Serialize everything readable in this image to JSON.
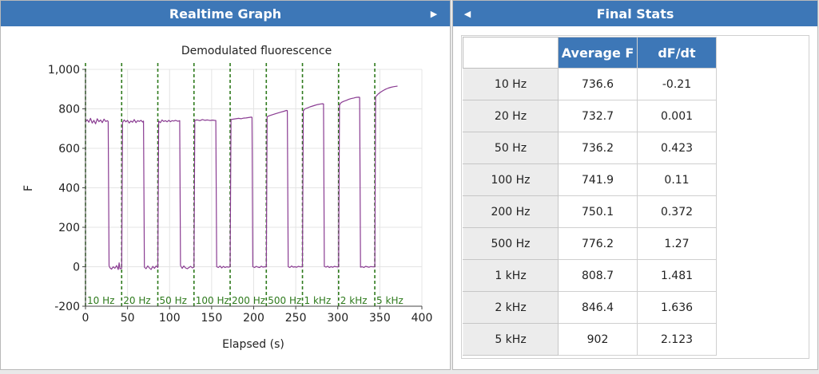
{
  "left_panel": {
    "title": "Realtime Graph",
    "collapse_arrow": "▶"
  },
  "right_panel": {
    "title": "Final Stats",
    "collapse_arrow": "◀"
  },
  "stats": {
    "columns": [
      "Average F",
      "dF/dt"
    ],
    "rows": [
      {
        "label": "10 Hz",
        "avg": "736.6",
        "dfdt": "-0.21"
      },
      {
        "label": "20 Hz",
        "avg": "732.7",
        "dfdt": "0.001"
      },
      {
        "label": "50 Hz",
        "avg": "736.2",
        "dfdt": "0.423"
      },
      {
        "label": "100 Hz",
        "avg": "741.9",
        "dfdt": "0.11"
      },
      {
        "label": "200 Hz",
        "avg": "750.1",
        "dfdt": "0.372"
      },
      {
        "label": "500 Hz",
        "avg": "776.2",
        "dfdt": "1.27"
      },
      {
        "label": "1 kHz",
        "avg": "808.7",
        "dfdt": "1.481"
      },
      {
        "label": "2 kHz",
        "avg": "846.4",
        "dfdt": "1.636"
      },
      {
        "label": "5 kHz",
        "avg": "902",
        "dfdt": "2.123"
      }
    ]
  },
  "chart_data": {
    "type": "line",
    "title": "Demodulated fluorescence",
    "xlabel": "Elapsed (s)",
    "ylabel": "F",
    "xlim": [
      0,
      400
    ],
    "ylim": [
      -200,
      1000
    ],
    "x_ticks": [
      "0",
      "50",
      "100",
      "150",
      "200",
      "250",
      "300",
      "350",
      "400"
    ],
    "x_tick_values": [
      0,
      50,
      100,
      150,
      200,
      250,
      300,
      350,
      400
    ],
    "y_ticks": [
      "-200",
      "0",
      "200",
      "400",
      "600",
      "800",
      "1,000"
    ],
    "y_tick_values": [
      -200,
      0,
      200,
      400,
      600,
      800,
      1000
    ],
    "grid": true,
    "line_color": "#8a3c92",
    "marker_color": "#2e7a1c",
    "markers": [
      {
        "x": 0,
        "label": "10 Hz"
      },
      {
        "x": 43,
        "label": "20 Hz"
      },
      {
        "x": 86,
        "label": "50 Hz"
      },
      {
        "x": 129,
        "label": "100 Hz"
      },
      {
        "x": 172,
        "label": "200 Hz"
      },
      {
        "x": 215,
        "label": "500 Hz"
      },
      {
        "x": 258,
        "label": "1 kHz"
      },
      {
        "x": 301,
        "label": "2 kHz"
      },
      {
        "x": 344,
        "label": "5 kHz"
      }
    ],
    "series": [
      {
        "values": [
          [
            0,
            734
          ],
          [
            2,
            745
          ],
          [
            4,
            732
          ],
          [
            6,
            752
          ],
          [
            8,
            728
          ],
          [
            10,
            742
          ],
          [
            12,
            724
          ],
          [
            14,
            750
          ],
          [
            16,
            735
          ],
          [
            18,
            744
          ],
          [
            20,
            730
          ],
          [
            22,
            748
          ],
          [
            24,
            736
          ],
          [
            26,
            740
          ],
          [
            27,
            736
          ],
          [
            28,
            5
          ],
          [
            29,
            -5
          ],
          [
            31,
            -12
          ],
          [
            33,
            0
          ],
          [
            35,
            -8
          ],
          [
            37,
            6
          ],
          [
            39,
            -14
          ],
          [
            40,
            20
          ],
          [
            41,
            -10
          ],
          [
            43,
            -8
          ],
          [
            44,
            730
          ],
          [
            46,
            744
          ],
          [
            48,
            734
          ],
          [
            50,
            742
          ],
          [
            52,
            728
          ],
          [
            54,
            738
          ],
          [
            56,
            732
          ],
          [
            58,
            746
          ],
          [
            60,
            730
          ],
          [
            62,
            740
          ],
          [
            64,
            736
          ],
          [
            66,
            742
          ],
          [
            68,
            733
          ],
          [
            69,
            738
          ],
          [
            70,
            -2
          ],
          [
            72,
            -10
          ],
          [
            74,
            4
          ],
          [
            76,
            -6
          ],
          [
            78,
            -14
          ],
          [
            80,
            2
          ],
          [
            82,
            -8
          ],
          [
            84,
            4
          ],
          [
            86,
            -4
          ],
          [
            87,
            738
          ],
          [
            89,
            730
          ],
          [
            91,
            744
          ],
          [
            93,
            736
          ],
          [
            95,
            740
          ],
          [
            97,
            734
          ],
          [
            99,
            742
          ],
          [
            101,
            735
          ],
          [
            103,
            740
          ],
          [
            105,
            738
          ],
          [
            107,
            742
          ],
          [
            110,
            737
          ],
          [
            112,
            740
          ],
          [
            113,
            6
          ],
          [
            115,
            -8
          ],
          [
            117,
            4
          ],
          [
            119,
            -6
          ],
          [
            121,
            -10
          ],
          [
            123,
            -4
          ],
          [
            125,
            2
          ],
          [
            127,
            -6
          ],
          [
            129,
            -2
          ],
          [
            130,
            742
          ],
          [
            133,
            744
          ],
          [
            136,
            740
          ],
          [
            139,
            746
          ],
          [
            142,
            742
          ],
          [
            145,
            744
          ],
          [
            148,
            741
          ],
          [
            151,
            743
          ],
          [
            153,
            742
          ],
          [
            155,
            741
          ],
          [
            156,
            0
          ],
          [
            158,
            -4
          ],
          [
            160,
            4
          ],
          [
            162,
            -6
          ],
          [
            164,
            2
          ],
          [
            166,
            -4
          ],
          [
            168,
            0
          ],
          [
            170,
            -2
          ],
          [
            172,
            -1
          ],
          [
            173,
            746
          ],
          [
            176,
            748
          ],
          [
            179,
            750
          ],
          [
            182,
            752
          ],
          [
            185,
            750
          ],
          [
            188,
            753
          ],
          [
            191,
            754
          ],
          [
            194,
            756
          ],
          [
            197,
            758
          ],
          [
            198,
            757
          ],
          [
            199,
            0
          ],
          [
            201,
            -4
          ],
          [
            203,
            2
          ],
          [
            205,
            -2
          ],
          [
            207,
            -4
          ],
          [
            209,
            3
          ],
          [
            211,
            -2
          ],
          [
            213,
            0
          ],
          [
            215,
            -1
          ],
          [
            216,
            760
          ],
          [
            219,
            766
          ],
          [
            222,
            770
          ],
          [
            225,
            774
          ],
          [
            228,
            778
          ],
          [
            232,
            783
          ],
          [
            236,
            788
          ],
          [
            239,
            792
          ],
          [
            240,
            791
          ],
          [
            241,
            0
          ],
          [
            243,
            -4
          ],
          [
            245,
            4
          ],
          [
            247,
            -2
          ],
          [
            249,
            0
          ],
          [
            251,
            -3
          ],
          [
            253,
            2
          ],
          [
            255,
            0
          ],
          [
            258,
            -1
          ],
          [
            259,
            790
          ],
          [
            261,
            800
          ],
          [
            264,
            805
          ],
          [
            267,
            810
          ],
          [
            270,
            814
          ],
          [
            273,
            818
          ],
          [
            276,
            822
          ],
          [
            280,
            825
          ],
          [
            282,
            826
          ],
          [
            283,
            825
          ],
          [
            284,
            2
          ],
          [
            286,
            -2
          ],
          [
            288,
            3
          ],
          [
            290,
            -4
          ],
          [
            292,
            1
          ],
          [
            294,
            -3
          ],
          [
            296,
            2
          ],
          [
            298,
            0
          ],
          [
            301,
            -1
          ],
          [
            302,
            820
          ],
          [
            304,
            832
          ],
          [
            307,
            838
          ],
          [
            310,
            843
          ],
          [
            313,
            848
          ],
          [
            316,
            852
          ],
          [
            319,
            855
          ],
          [
            322,
            858
          ],
          [
            325,
            859
          ],
          [
            326,
            858
          ],
          [
            327,
            -2
          ],
          [
            329,
            0
          ],
          [
            331,
            -4
          ],
          [
            333,
            2
          ],
          [
            335,
            0
          ],
          [
            337,
            -3
          ],
          [
            339,
            1
          ],
          [
            341,
            0
          ],
          [
            344,
            -1
          ],
          [
            345,
            860
          ],
          [
            346,
            866
          ],
          [
            348,
            875
          ],
          [
            351,
            885
          ],
          [
            354,
            893
          ],
          [
            357,
            900
          ],
          [
            360,
            905
          ],
          [
            363,
            909
          ],
          [
            366,
            912
          ],
          [
            369,
            914
          ],
          [
            371,
            915
          ]
        ]
      }
    ]
  }
}
